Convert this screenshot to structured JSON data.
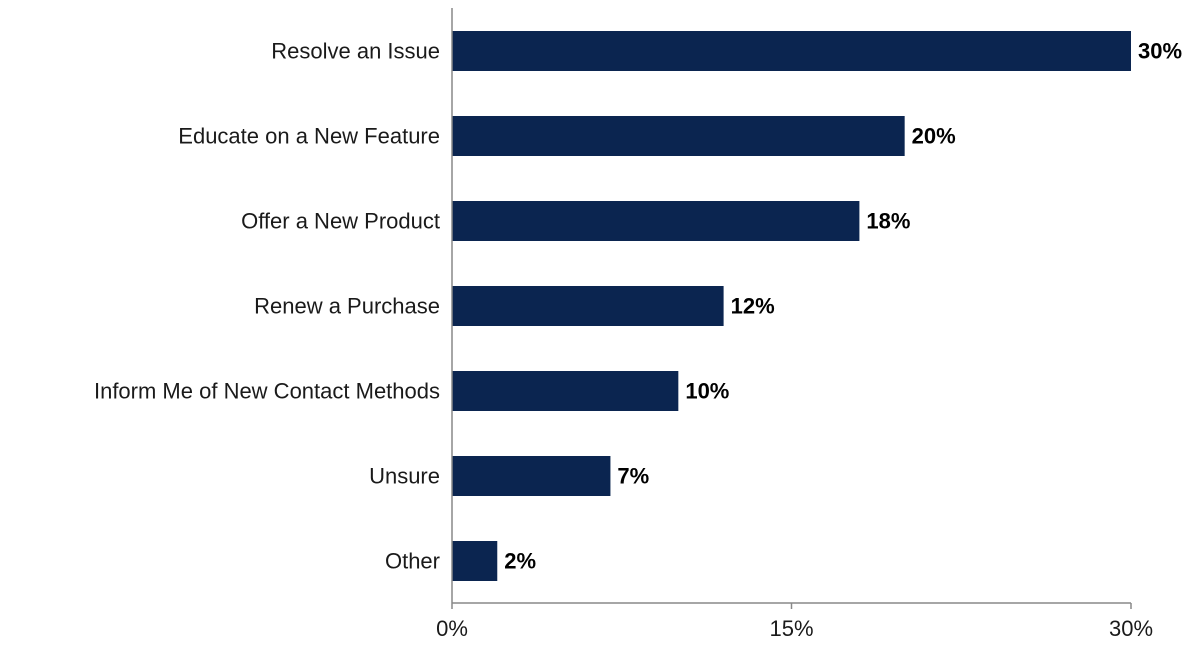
{
  "chart_data": {
    "type": "bar",
    "orientation": "horizontal",
    "title": "",
    "xlabel": "",
    "ylabel": "",
    "categories": [
      "Resolve an Issue",
      "Educate on a New Feature",
      "Offer a New Product",
      "Renew a Purchase",
      "Inform Me of New Contact Methods",
      "Unsure",
      "Other"
    ],
    "values": [
      30,
      20,
      18,
      12,
      10,
      7,
      2
    ],
    "value_labels": [
      "30%",
      "20%",
      "18%",
      "12%",
      "10%",
      "7%",
      "2%"
    ],
    "xlim": [
      0,
      30
    ],
    "x_ticks": [
      0,
      15,
      30
    ],
    "x_tick_labels": [
      "0%",
      "15%",
      "30%"
    ],
    "grid": false,
    "legend": "none",
    "bar_color": "#0b2550",
    "axis_color": "#888888"
  }
}
